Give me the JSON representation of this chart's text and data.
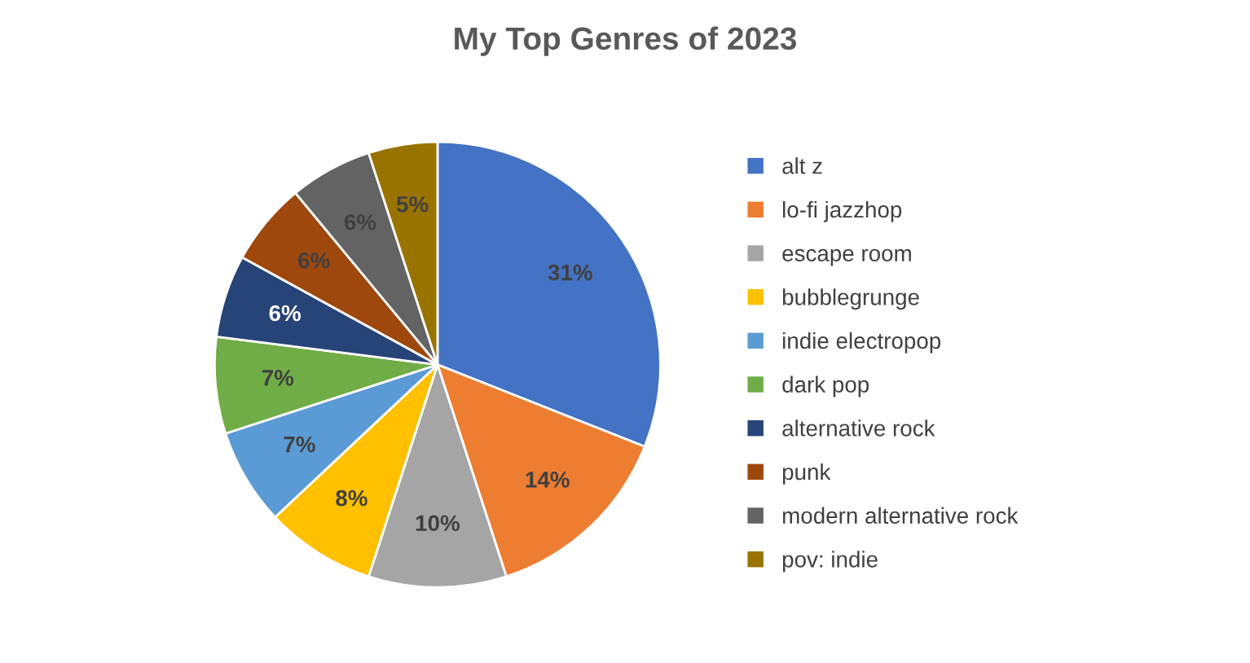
{
  "chart_data": {
    "type": "pie",
    "title": "My Top Genres of 2023",
    "categories": [
      "alt z",
      "lo-fi jazzhop",
      "escape room",
      "bubblegrunge",
      "indie electropop",
      "dark pop",
      "alternative rock",
      "punk",
      "modern alternative rock",
      "pov: indie"
    ],
    "values": [
      31,
      14,
      10,
      8,
      7,
      7,
      6,
      6,
      6,
      5
    ],
    "value_labels": [
      "31%",
      "14%",
      "10%",
      "8%",
      "7%",
      "7%",
      "6%",
      "6%",
      "6%",
      "5%"
    ],
    "colors": [
      "#4472c4",
      "#ed7d31",
      "#a5a5a5",
      "#ffc000",
      "#5b9bd5",
      "#70ad47",
      "#264478",
      "#9e480e",
      "#636363",
      "#997300"
    ],
    "legend": "right"
  }
}
